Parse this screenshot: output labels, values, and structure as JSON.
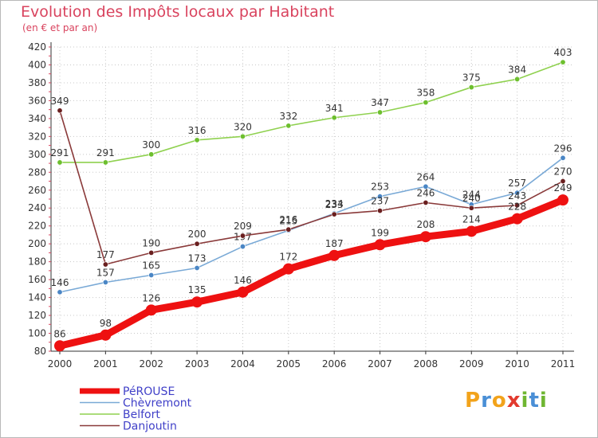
{
  "header": {
    "title": "Evolution des Impôts locaux par Habitant",
    "subtitle": "(en € et par an)"
  },
  "logo": {
    "letters": [
      "P",
      "r",
      "o",
      "x",
      "i",
      "t",
      "i"
    ],
    "colors": [
      "#f2a31b",
      "#4a8fd6",
      "#f2a31b",
      "#e23a2e",
      "#6fb632",
      "#4a8fd6",
      "#6fb632"
    ]
  },
  "chart_data": {
    "type": "line",
    "title": "Evolution des Impôts locaux par Habitant",
    "subtitle": "(en € et par an)",
    "xlabel": "",
    "ylabel": "",
    "ylim": [
      80,
      420
    ],
    "yticks": [
      80,
      100,
      120,
      140,
      160,
      180,
      200,
      220,
      240,
      260,
      280,
      300,
      320,
      340,
      360,
      380,
      400,
      420
    ],
    "x": [
      "2000",
      "2001",
      "2002",
      "2003",
      "2004",
      "2005",
      "2006",
      "2007",
      "2008",
      "2009",
      "2010",
      "2011"
    ],
    "legend_position": "bottom-left",
    "series": [
      {
        "name": "Belfort",
        "color": "#8fd14f",
        "marker": "#6dbf2e",
        "values": [
          291,
          291,
          300,
          316,
          320,
          332,
          341,
          347,
          358,
          375,
          384,
          403
        ]
      },
      {
        "name": "Chèvremont",
        "color": "#79a9d6",
        "marker": "#4a86c5",
        "values": [
          146,
          157,
          165,
          173,
          197,
          215,
          234,
          253,
          264,
          244,
          257,
          296
        ]
      },
      {
        "name": "Danjoutin",
        "color": "#8a3a3a",
        "marker": "#6a1f1f",
        "values": [
          349,
          177,
          190,
          200,
          209,
          216,
          233,
          237,
          246,
          240,
          243,
          270
        ]
      },
      {
        "name": "PéROUSE",
        "color": "#ee1111",
        "marker": "#ee1111",
        "values": [
          86,
          98,
          126,
          135,
          146,
          172,
          187,
          199,
          208,
          214,
          228,
          249
        ]
      }
    ],
    "legend": [
      "PéROUSE",
      "Chèvremont",
      "Belfort",
      "Danjoutin"
    ]
  }
}
